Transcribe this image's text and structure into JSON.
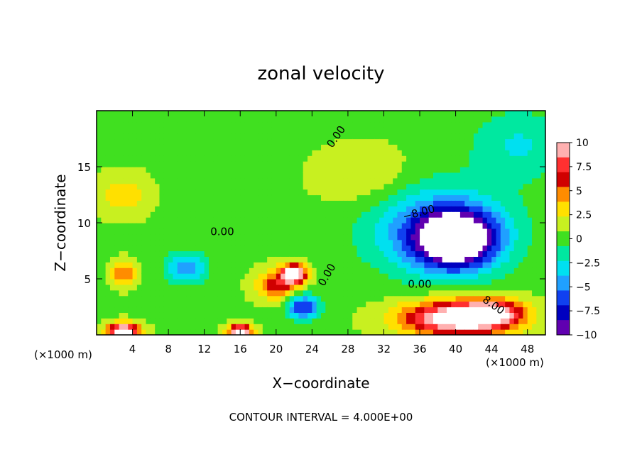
{
  "chart_data": {
    "type": "heatmap",
    "title": "zonal velocity",
    "xlabel": "X−coordinate",
    "ylabel": "Z−coordinate",
    "x_unit_label_left": "(×1000 m)",
    "x_unit_label_right": "(×1000 m)",
    "footer": "CONTOUR INTERVAL = 4.000E+00",
    "xlim": [
      0,
      50
    ],
    "ylim": [
      0,
      20
    ],
    "x_ticks": [
      4,
      8,
      12,
      16,
      20,
      24,
      28,
      32,
      36,
      40,
      44,
      48
    ],
    "x_tick_labels": [
      "4",
      "8",
      "12",
      "16",
      "20",
      "24",
      "28",
      "32",
      "36",
      "40",
      "44",
      "48"
    ],
    "y_ticks": [
      5,
      10,
      15
    ],
    "y_tick_labels": [
      "5",
      "10",
      "15"
    ],
    "colorbar": {
      "ticks": [
        10,
        7.5,
        5,
        2.5,
        0,
        -2.5,
        -5,
        -7.5,
        -10
      ],
      "tick_labels": [
        "10",
        "7.5",
        "5",
        "2.5",
        "0",
        "−2.5",
        "−5",
        "−7.5",
        "−10"
      ],
      "colors": [
        "#ffb0b0",
        "#ff3030",
        "#d00000",
        "#ff8c00",
        "#ffe000",
        "#c8f020",
        "#40e020",
        "#00e8a0",
        "#00e0f0",
        "#20a0ff",
        "#1040f0",
        "#0000c0",
        "#6000b0"
      ]
    },
    "background_value": 0.5,
    "features": [
      {
        "x": 40,
        "z": 8.5,
        "rx": 5,
        "rz": 2.8,
        "value": -13
      },
      {
        "x": 38,
        "z": 9.5,
        "rx": 9,
        "rz": 4.5,
        "value": -6
      },
      {
        "x": 40,
        "z": 1.5,
        "rx": 7,
        "rz": 1.8,
        "value": 11
      },
      {
        "x": 44,
        "z": 2,
        "rx": 4,
        "rz": 1.4,
        "value": 7
      },
      {
        "x": 22,
        "z": 5.5,
        "rx": 1.5,
        "rz": 1.0,
        "value": 12
      },
      {
        "x": 20,
        "z": 4.5,
        "rx": 2.5,
        "rz": 1.5,
        "value": 6
      },
      {
        "x": 10,
        "z": 6,
        "rx": 2.5,
        "rz": 1.5,
        "value": -6
      },
      {
        "x": 23,
        "z": 2.5,
        "rx": 2,
        "rz": 1.2,
        "value": -8
      },
      {
        "x": 3,
        "z": 5.5,
        "rx": 1.5,
        "rz": 1.2,
        "value": 5
      },
      {
        "x": 3,
        "z": 12.5,
        "rx": 3,
        "rz": 2,
        "value": 3
      },
      {
        "x": 3,
        "z": 0.4,
        "rx": 2,
        "rz": 0.8,
        "value": 12
      },
      {
        "x": 16,
        "z": 0.4,
        "rx": 1.5,
        "rz": 0.6,
        "value": 12
      },
      {
        "x": 47,
        "z": 17,
        "rx": 6,
        "rz": 3.5,
        "value": -3
      },
      {
        "x": 30,
        "z": 14,
        "rx": 6,
        "rz": 3,
        "value": 2
      }
    ],
    "contour_labels": [
      "0.00",
      "0.00",
      "0.00",
      "0.00",
      "−8.00",
      "8.00"
    ]
  }
}
